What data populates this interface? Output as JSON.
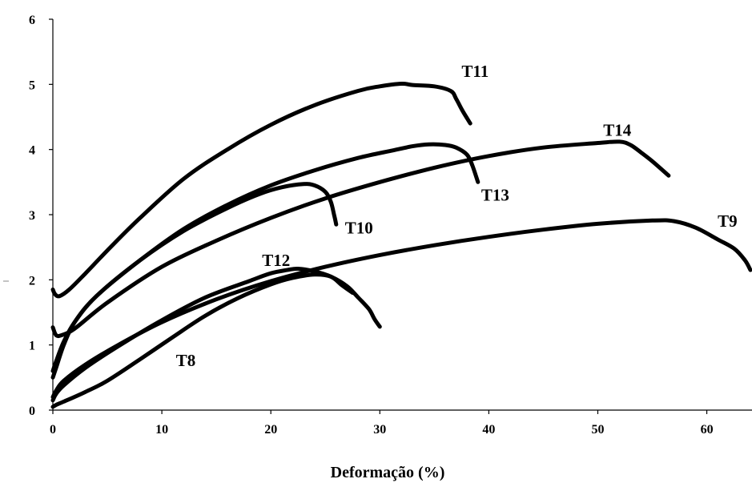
{
  "chart_data": {
    "type": "line",
    "title": "",
    "xlabel": "Deformação (%)",
    "ylabel": "",
    "xlim": [
      0,
      64
    ],
    "ylim": [
      0,
      6
    ],
    "x_ticks": [
      0,
      10,
      20,
      30,
      40,
      50,
      60
    ],
    "y_ticks": [
      0,
      1,
      2,
      3,
      4,
      5,
      6
    ],
    "grid": false,
    "legend": "none",
    "line_color": "#000000",
    "series": [
      {
        "name": "T11",
        "x": [
          0,
          0.2,
          0.6,
          1.5,
          3,
          5,
          8,
          12,
          16,
          20,
          24,
          28,
          30,
          32,
          33,
          35,
          36.5,
          37,
          37.5,
          38,
          38.3
        ],
        "y": [
          1.85,
          1.78,
          1.75,
          1.85,
          2.1,
          2.45,
          2.95,
          3.55,
          4.0,
          4.38,
          4.68,
          4.9,
          4.97,
          5.01,
          4.99,
          4.97,
          4.9,
          4.78,
          4.62,
          4.48,
          4.4
        ]
      },
      {
        "name": "T14",
        "x": [
          0,
          0.3,
          0.8,
          2,
          5,
          10,
          15,
          20,
          25,
          30,
          35,
          40,
          45,
          50,
          52,
          53,
          54,
          55,
          56.5
        ],
        "y": [
          1.27,
          1.15,
          1.15,
          1.25,
          1.65,
          2.2,
          2.6,
          2.95,
          3.25,
          3.5,
          3.72,
          3.9,
          4.03,
          4.1,
          4.12,
          4.07,
          3.95,
          3.82,
          3.6
        ]
      },
      {
        "name": "T13",
        "x": [
          0,
          0.3,
          1,
          2,
          4,
          8,
          12,
          16,
          20,
          24,
          28,
          31,
          33,
          34.5,
          36,
          37,
          38,
          38.5,
          39
        ],
        "y": [
          0.5,
          0.65,
          1.0,
          1.35,
          1.75,
          2.3,
          2.78,
          3.15,
          3.45,
          3.68,
          3.87,
          3.98,
          4.05,
          4.08,
          4.07,
          4.03,
          3.92,
          3.75,
          3.5
        ]
      },
      {
        "name": "T10",
        "x": [
          0,
          0.3,
          1,
          2,
          4,
          8,
          12,
          16,
          19,
          21,
          23,
          24,
          25,
          25.5,
          25.8,
          26
        ],
        "y": [
          0.6,
          0.75,
          1.05,
          1.35,
          1.75,
          2.3,
          2.75,
          3.1,
          3.32,
          3.42,
          3.47,
          3.45,
          3.35,
          3.2,
          3.0,
          2.85
        ]
      },
      {
        "name": "T9",
        "x": [
          0,
          0.3,
          1,
          3,
          6,
          10,
          15,
          20,
          25,
          30,
          35,
          40,
          45,
          50,
          55,
          57,
          59,
          61,
          62.5,
          63.5,
          64
        ],
        "y": [
          0.2,
          0.3,
          0.45,
          0.7,
          1.0,
          1.35,
          1.7,
          1.98,
          2.2,
          2.38,
          2.53,
          2.66,
          2.77,
          2.86,
          2.91,
          2.9,
          2.8,
          2.62,
          2.48,
          2.3,
          2.15
        ]
      },
      {
        "name": "T12",
        "x": [
          0,
          0.3,
          1,
          3,
          6,
          10,
          14,
          18,
          20,
          21.5,
          22.5,
          24,
          25.5,
          27,
          28,
          29,
          29.5,
          30
        ],
        "y": [
          0.15,
          0.25,
          0.38,
          0.65,
          0.98,
          1.38,
          1.73,
          1.98,
          2.1,
          2.15,
          2.17,
          2.13,
          2.05,
          1.9,
          1.73,
          1.55,
          1.4,
          1.28
        ]
      },
      {
        "name": "T8",
        "x": [
          0,
          0.3,
          1,
          3,
          5,
          8,
          11,
          14,
          17,
          20,
          22,
          24,
          25.5,
          26.5,
          27.5
        ],
        "y": [
          0.05,
          0.08,
          0.13,
          0.28,
          0.45,
          0.78,
          1.12,
          1.45,
          1.72,
          1.93,
          2.03,
          2.08,
          2.05,
          1.92,
          1.8
        ]
      }
    ],
    "series_labels": [
      {
        "name": "T11",
        "x": 37.5,
        "y": 5.2
      },
      {
        "name": "T14",
        "x": 50.5,
        "y": 4.3
      },
      {
        "name": "T13",
        "x": 39.3,
        "y": 3.3
      },
      {
        "name": "T10",
        "x": 26.8,
        "y": 2.8
      },
      {
        "name": "T9",
        "x": 61.0,
        "y": 2.9
      },
      {
        "name": "T12",
        "x": 19.2,
        "y": 2.3
      },
      {
        "name": "T8",
        "x": 11.3,
        "y": 0.76
      }
    ]
  }
}
